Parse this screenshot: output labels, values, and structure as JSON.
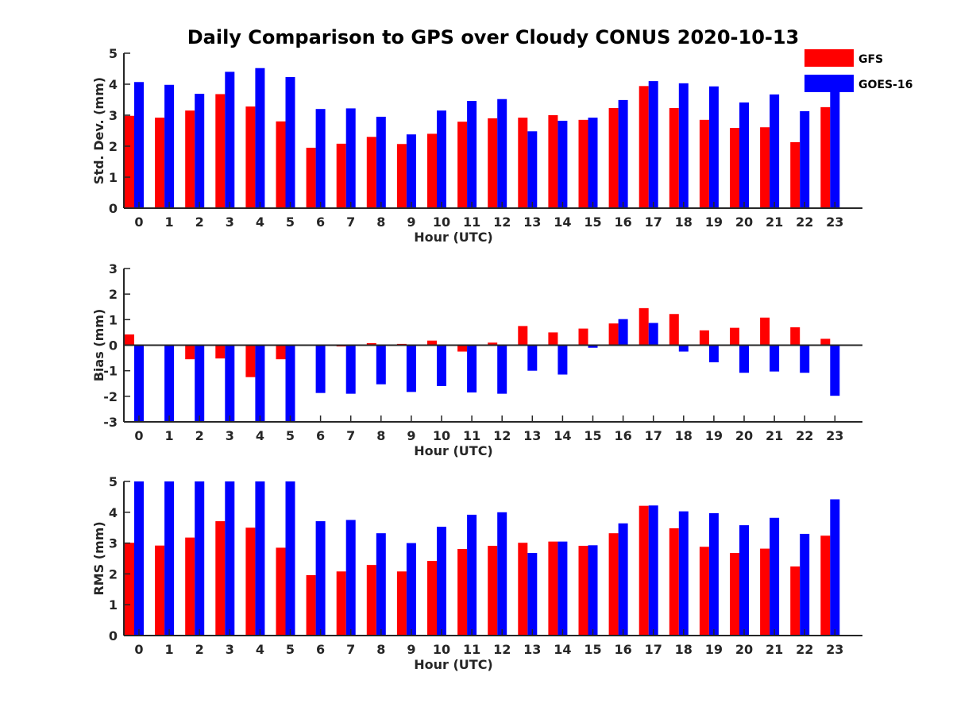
{
  "chart_data": {
    "title": "Daily Comparison to GPS over Cloudy CONUS 2020-10-13",
    "legend": {
      "placement": "top-right",
      "entries": [
        {
          "name": "GFS",
          "color": "#ff0000"
        },
        {
          "name": "GOES-16",
          "color": "#0000ff"
        }
      ]
    },
    "panels": [
      {
        "type": "bar",
        "ylabel": "Std. Dev. (mm)",
        "xlabel": "Hour (UTC)",
        "ylim": [
          0,
          5
        ],
        "yticks": [
          0,
          1,
          2,
          3,
          4,
          5
        ],
        "categories": [
          "0",
          "1",
          "2",
          "3",
          "4",
          "5",
          "6",
          "7",
          "8",
          "9",
          "10",
          "11",
          "12",
          "13",
          "14",
          "15",
          "16",
          "17",
          "18",
          "19",
          "20",
          "21",
          "22",
          "23"
        ],
        "series": [
          {
            "name": "GFS",
            "color": "#ff0000",
            "values": [
              2.98,
              2.92,
              3.15,
              3.68,
              3.28,
              2.8,
              1.95,
              2.08,
              2.3,
              2.07,
              2.4,
              2.79,
              2.9,
              2.92,
              3.0,
              2.85,
              3.23,
              3.94,
              3.23,
              2.85,
              2.59,
              2.61,
              2.13,
              3.26
            ]
          },
          {
            "name": "GOES-16",
            "color": "#0000ff",
            "values": [
              4.07,
              3.98,
              3.69,
              4.4,
              4.52,
              4.23,
              3.2,
              3.22,
              2.95,
              2.38,
              3.15,
              3.46,
              3.52,
              2.48,
              2.82,
              2.92,
              3.49,
              4.1,
              4.03,
              3.93,
              3.41,
              3.67,
              3.13,
              3.9
            ]
          }
        ]
      },
      {
        "type": "bar",
        "ylabel": "Bias (mm)",
        "xlabel": "Hour (UTC)",
        "ylim": [
          -3,
          3
        ],
        "yticks": [
          -3,
          -2,
          -1,
          0,
          1,
          2,
          3
        ],
        "categories": [
          "0",
          "1",
          "2",
          "3",
          "4",
          "5",
          "6",
          "7",
          "8",
          "9",
          "10",
          "11",
          "12",
          "13",
          "14",
          "15",
          "16",
          "17",
          "18",
          "19",
          "20",
          "21",
          "22",
          "23"
        ],
        "series": [
          {
            "name": "GFS",
            "color": "#ff0000",
            "values": [
              0.42,
              0.02,
              -0.55,
              -0.52,
              -1.25,
              -0.55,
              0.02,
              -0.05,
              0.08,
              0.05,
              0.18,
              -0.25,
              0.1,
              0.75,
              0.5,
              0.65,
              0.85,
              1.45,
              1.22,
              0.58,
              0.68,
              1.08,
              0.7,
              0.25
            ]
          },
          {
            "name": "GOES-16",
            "color": "#0000ff",
            "values": [
              -3.0,
              -3.0,
              -3.0,
              -3.0,
              -3.0,
              -3.0,
              -1.87,
              -1.9,
              -1.53,
              -1.83,
              -1.6,
              -1.85,
              -1.9,
              -1.0,
              -1.15,
              -0.1,
              1.02,
              0.87,
              -0.25,
              -0.67,
              -1.08,
              -1.03,
              -1.08,
              -1.98
            ]
          }
        ]
      },
      {
        "type": "bar",
        "ylabel": "RMS (mm)",
        "xlabel": "Hour (UTC)",
        "ylim": [
          0,
          5
        ],
        "yticks": [
          0,
          1,
          2,
          3,
          4,
          5
        ],
        "categories": [
          "0",
          "1",
          "2",
          "3",
          "4",
          "5",
          "6",
          "7",
          "8",
          "9",
          "10",
          "11",
          "12",
          "13",
          "14",
          "15",
          "16",
          "17",
          "18",
          "19",
          "20",
          "21",
          "22",
          "23"
        ],
        "series": [
          {
            "name": "GFS",
            "color": "#ff0000",
            "values": [
              3.01,
              2.92,
              3.18,
              3.71,
              3.5,
              2.85,
              1.96,
              2.08,
              2.29,
              2.08,
              2.42,
              2.81,
              2.91,
              3.01,
              3.05,
              2.91,
              3.32,
              4.21,
              3.48,
              2.88,
              2.68,
              2.82,
              2.24,
              3.24
            ]
          },
          {
            "name": "GOES-16",
            "color": "#0000ff",
            "values": [
              5.0,
              5.0,
              5.0,
              5.0,
              5.0,
              5.0,
              3.71,
              3.75,
              3.32,
              3.0,
              3.53,
              3.92,
              4.0,
              2.68,
              3.05,
              2.93,
              3.64,
              4.22,
              4.03,
              3.97,
              3.58,
              3.82,
              3.3,
              4.42
            ]
          }
        ]
      }
    ]
  }
}
